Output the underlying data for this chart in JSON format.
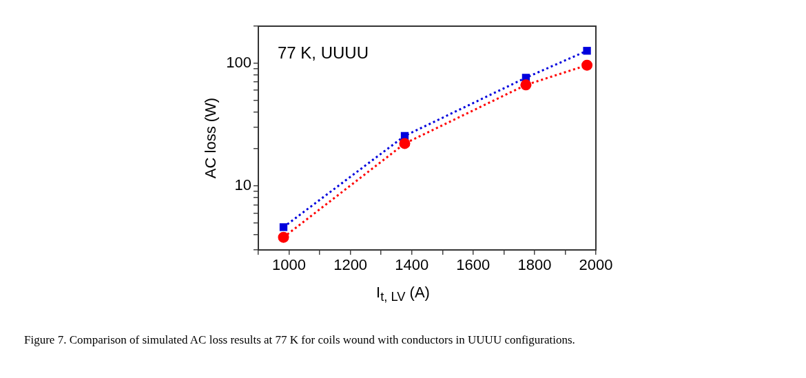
{
  "chart_data": {
    "type": "line",
    "xlabel": "I$_{t, LV}$ (A)",
    "ylabel": "AC loss (W)",
    "annotations": [
      "77 K, UUUU",
      "Figure 7. Comparison of simulated AC loss results at 77 K for coils wound with conductors in UUUU configurations."
    ],
    "x": [
      982,
      1377,
      1772,
      1971
    ],
    "series": [
      {
        "color": "#ff0000",
        "marker": "circle",
        "values": [
          3.8,
          22.1,
          66.4,
          96.2
        ]
      },
      {
        "color": "#0000dd",
        "marker": "square",
        "values": [
          4.6,
          25.5,
          76,
          126
        ]
      }
    ],
    "line_style": "dotted",
    "log": "y",
    "grid": false,
    "legend": false,
    "xlim": [
      900,
      2000
    ],
    "ylim": [
      3,
      200
    ],
    "xticks": [
      {
        "value": 900,
        "label": null
      },
      1000,
      {
        "value": 1100,
        "label": null
      },
      1200,
      {
        "value": 1300,
        "label": null
      },
      1400,
      {
        "value": 1500,
        "label": null
      },
      1600,
      {
        "value": 1700,
        "label": null
      },
      1800,
      {
        "value": 1900,
        "label": null
      },
      2000
    ],
    "yticks": [
      {
        "value": 3,
        "label": null
      },
      {
        "value": 4,
        "label": null
      },
      {
        "value": 5,
        "label": null
      },
      {
        "value": 6,
        "label": null
      },
      {
        "value": 7,
        "label": null
      },
      {
        "value": 8,
        "label": null
      },
      {
        "value": 9,
        "label": null
      },
      10,
      {
        "value": 20,
        "label": null
      },
      {
        "value": 30,
        "label": null
      },
      {
        "value": 40,
        "label": null
      },
      {
        "value": 50,
        "label": null
      },
      {
        "value": 60,
        "label": null
      },
      {
        "value": 70,
        "label": null
      },
      {
        "value": 80,
        "label": null
      },
      {
        "value": 90,
        "label": null
      },
      100,
      {
        "value": 200,
        "label": null
      }
    ]
  }
}
